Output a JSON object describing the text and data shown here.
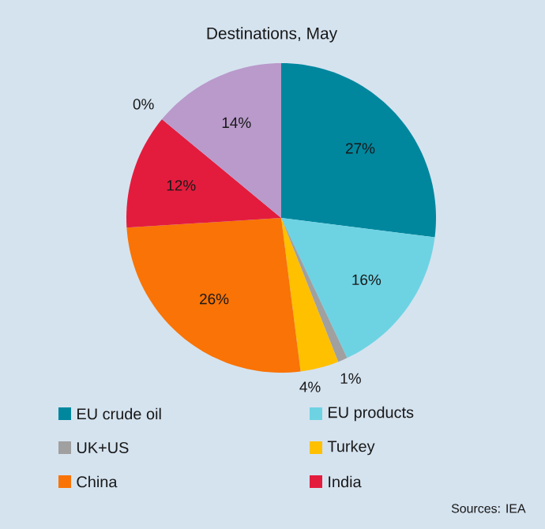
{
  "chart_data": {
    "type": "pie",
    "title": "Destinations, May",
    "categories": [
      "EU crude oil",
      "EU products",
      "UK+US",
      "Turkey",
      "China",
      "India",
      null,
      null
    ],
    "values": [
      27,
      16,
      1,
      4,
      26,
      12,
      0,
      14
    ],
    "colors": [
      "#00879e",
      "#6dd3e3",
      "#a0a0a0",
      "#ffc000",
      "#f97306",
      "#e31c3d",
      "#5c3a70",
      "#b99acb"
    ],
    "value_labels": [
      "27%",
      "16%",
      "1%",
      "4%",
      "26%",
      "12%",
      "0%",
      "14%"
    ],
    "legend": "bottom",
    "annotations": [
      "Sources: IEA"
    ]
  }
}
